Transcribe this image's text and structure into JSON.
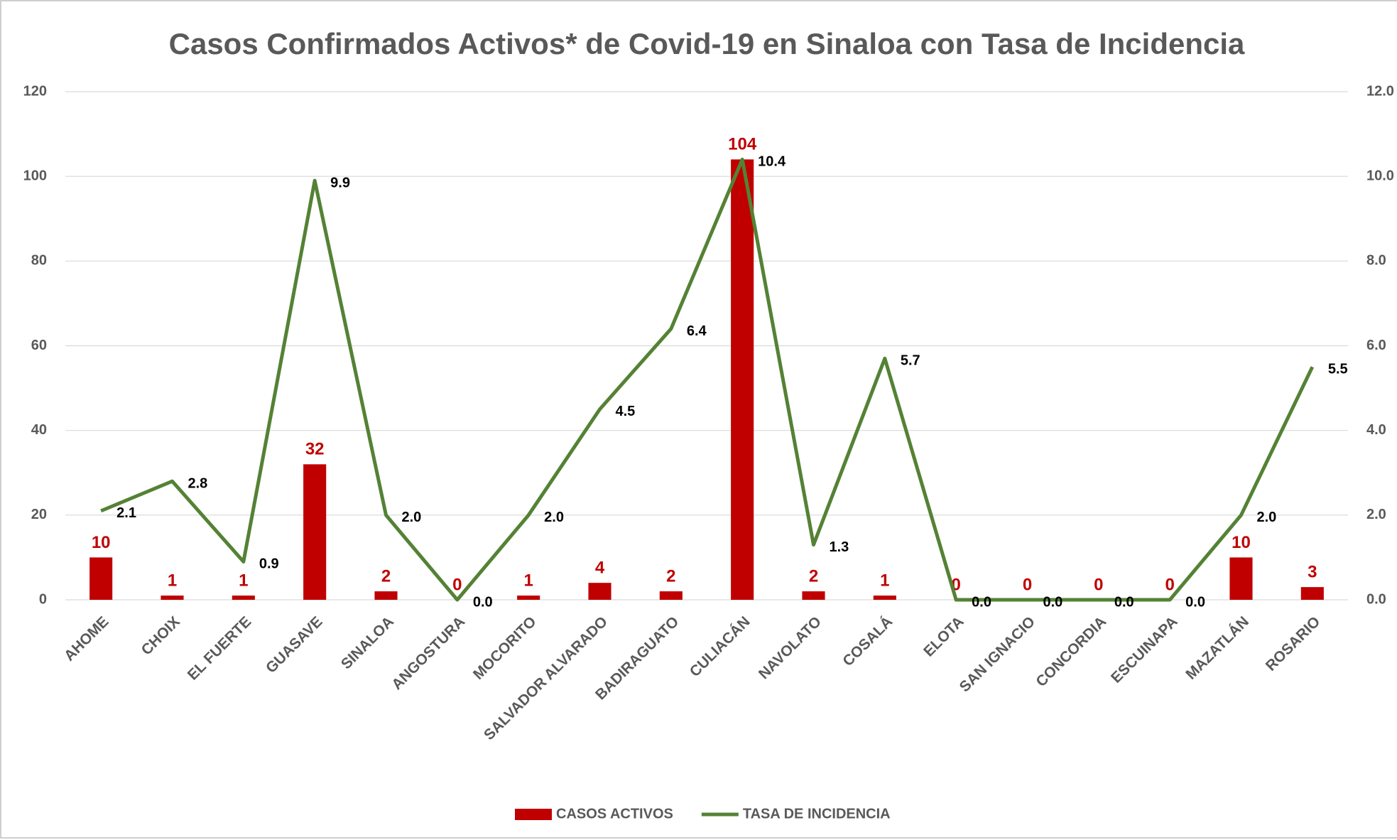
{
  "chart_data": {
    "type": "bar",
    "title": "Casos Confirmados Activos* de Covid-19 en Sinaloa con Tasa de Incidencia",
    "categories": [
      "AHOME",
      "CHOIX",
      "EL FUERTE",
      "GUASAVE",
      "SINALOA",
      "ANGOSTURA",
      "MOCORITO",
      "SALVADOR ALVARADO",
      "BADIRAGUATO",
      "CULIACÁN",
      "NAVOLATO",
      "COSALÁ",
      "ELOTA",
      "SAN IGNACIO",
      "CONCORDIA",
      "ESCUINAPA",
      "MAZATLÁN",
      "ROSARIO"
    ],
    "series": [
      {
        "name": "CASOS ACTIVOS",
        "type": "bar",
        "color": "#c00000",
        "values": [
          10,
          1,
          1,
          32,
          2,
          0,
          1,
          4,
          2,
          104,
          2,
          1,
          0,
          0,
          0,
          0,
          10,
          3
        ]
      },
      {
        "name": "TASA DE INCIDENCIA",
        "type": "line",
        "axis": "y2",
        "color": "#548235",
        "values": [
          2.1,
          2.8,
          0.9,
          9.9,
          2.0,
          0.0,
          2.0,
          4.5,
          6.4,
          10.4,
          1.3,
          5.7,
          0.0,
          0.0,
          0.0,
          0.0,
          2.0,
          5.5
        ],
        "value_labels": [
          "2.1",
          "2.8",
          "0.9",
          "9.9",
          "2.0",
          "0.0",
          "2.0",
          "4.5",
          "6.4",
          "10.4",
          "1.3",
          "5.7",
          "0.0",
          "0.0",
          "0.0",
          "0.0",
          "2.0",
          "5.5"
        ]
      }
    ],
    "ylim": [
      0,
      120
    ],
    "yticks": [
      0,
      20,
      40,
      60,
      80,
      100,
      120
    ],
    "y2lim": [
      0,
      12
    ],
    "y2ticks": [
      {
        "value": 0,
        "label": "0.0"
      },
      {
        "value": 2,
        "label": "2.0"
      },
      {
        "value": 4,
        "label": "4.0"
      },
      {
        "value": 6,
        "label": "6.0"
      },
      {
        "value": 8,
        "label": "8.0"
      },
      {
        "value": 10,
        "label": "10.0"
      },
      {
        "value": 12,
        "label": "12.0"
      }
    ],
    "grid": true,
    "legend": "bottom"
  }
}
